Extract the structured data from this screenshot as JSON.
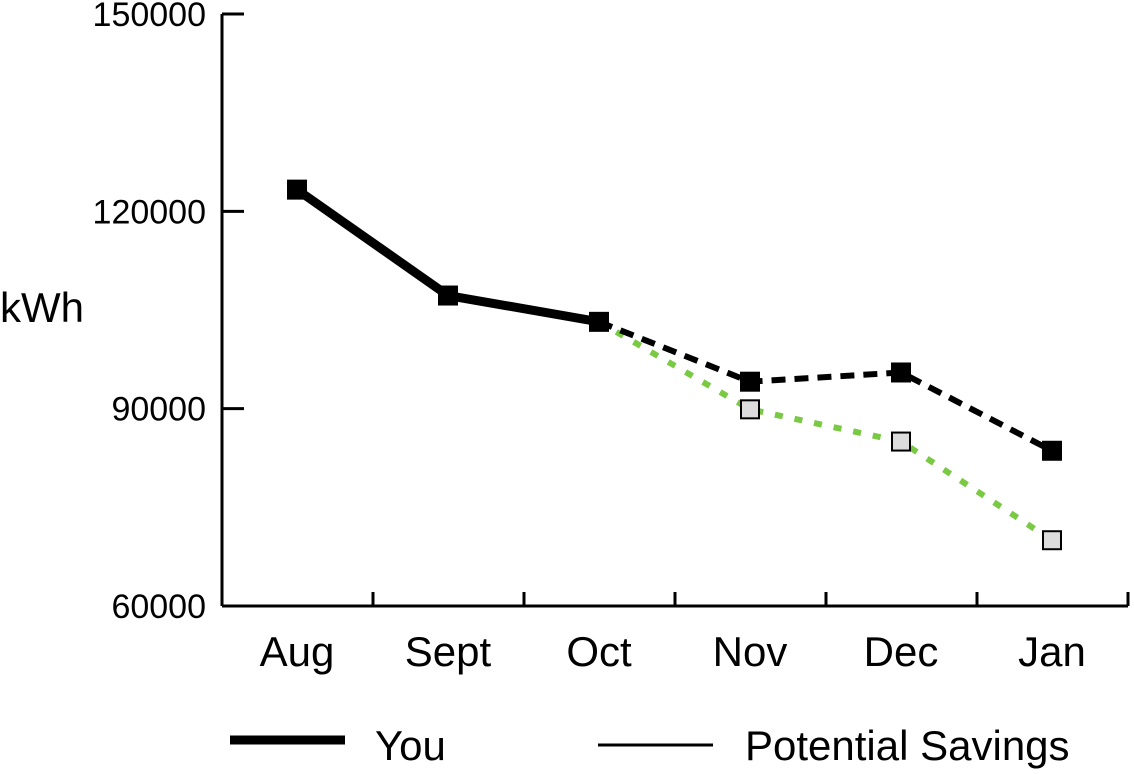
{
  "chart_data": {
    "type": "line",
    "categories": [
      "Aug",
      "Sept",
      "Oct",
      "Nov",
      "Dec",
      "Jan"
    ],
    "ylabel": "kWh",
    "xlabel": "",
    "title": "",
    "ylim": [
      60000,
      150000
    ],
    "yticks": [
      "150000",
      "120000",
      "90000",
      "60000"
    ],
    "ytick_values": [
      150000,
      120000,
      90000,
      60000
    ],
    "grid": false,
    "legend_position": "bottom",
    "series": [
      {
        "name": "You",
        "values": [
          123300,
          107200,
          103200,
          94100,
          95500,
          83600
        ],
        "color": "#000000",
        "marker": "filled-square",
        "style": "solid through Oct, dashed after"
      },
      {
        "name": "Potential Savings",
        "values": [
          null,
          null,
          103200,
          89900,
          85000,
          70000
        ],
        "color": "#7ac943",
        "marker": "open-gray-square",
        "style": "dotted"
      }
    ]
  },
  "legend": {
    "you_label": "You",
    "savings_label": "Potential Savings"
  }
}
